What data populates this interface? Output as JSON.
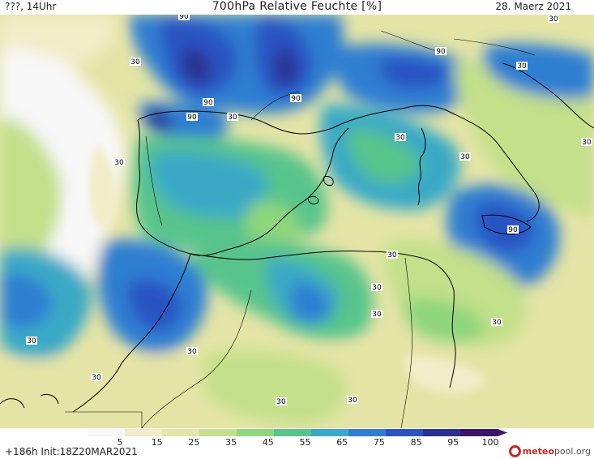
{
  "header": {
    "left": "???, 14Uhr",
    "title": "700hPa Relative Feuchte [%]",
    "date": "28. Maerz 2021"
  },
  "footer": {
    "run": "+186h  Init:18Z20MAR2021",
    "logo_main": "meteo",
    "logo_rest": "pool.org"
  },
  "colorbar": {
    "tick_labels": [
      "5",
      "15",
      "25",
      "35",
      "45",
      "55",
      "65",
      "75",
      "85",
      "95",
      "100"
    ],
    "colors": [
      "#f7f7f7",
      "#f3ecc8",
      "#e4e4a6",
      "#c3e08a",
      "#8fd67c",
      "#58c48c",
      "#3aa9c6",
      "#2e7ed2",
      "#2c52c2",
      "#2b2f8e",
      "#3c1566"
    ]
  },
  "contour_labels": [
    {
      "text": "90"
    },
    {
      "text": "90"
    },
    {
      "text": "90"
    },
    {
      "text": "90"
    },
    {
      "text": "90"
    },
    {
      "text": "90"
    },
    {
      "text": "30"
    },
    {
      "text": "30"
    },
    {
      "text": "30"
    },
    {
      "text": "30"
    },
    {
      "text": "30"
    },
    {
      "text": "30"
    },
    {
      "text": "30"
    },
    {
      "text": "30"
    },
    {
      "text": "30"
    },
    {
      "text": "30"
    },
    {
      "text": "30"
    },
    {
      "text": "30"
    },
    {
      "text": "30"
    },
    {
      "text": "30"
    },
    {
      "text": "30"
    },
    {
      "text": "30"
    },
    {
      "text": "30"
    }
  ]
}
